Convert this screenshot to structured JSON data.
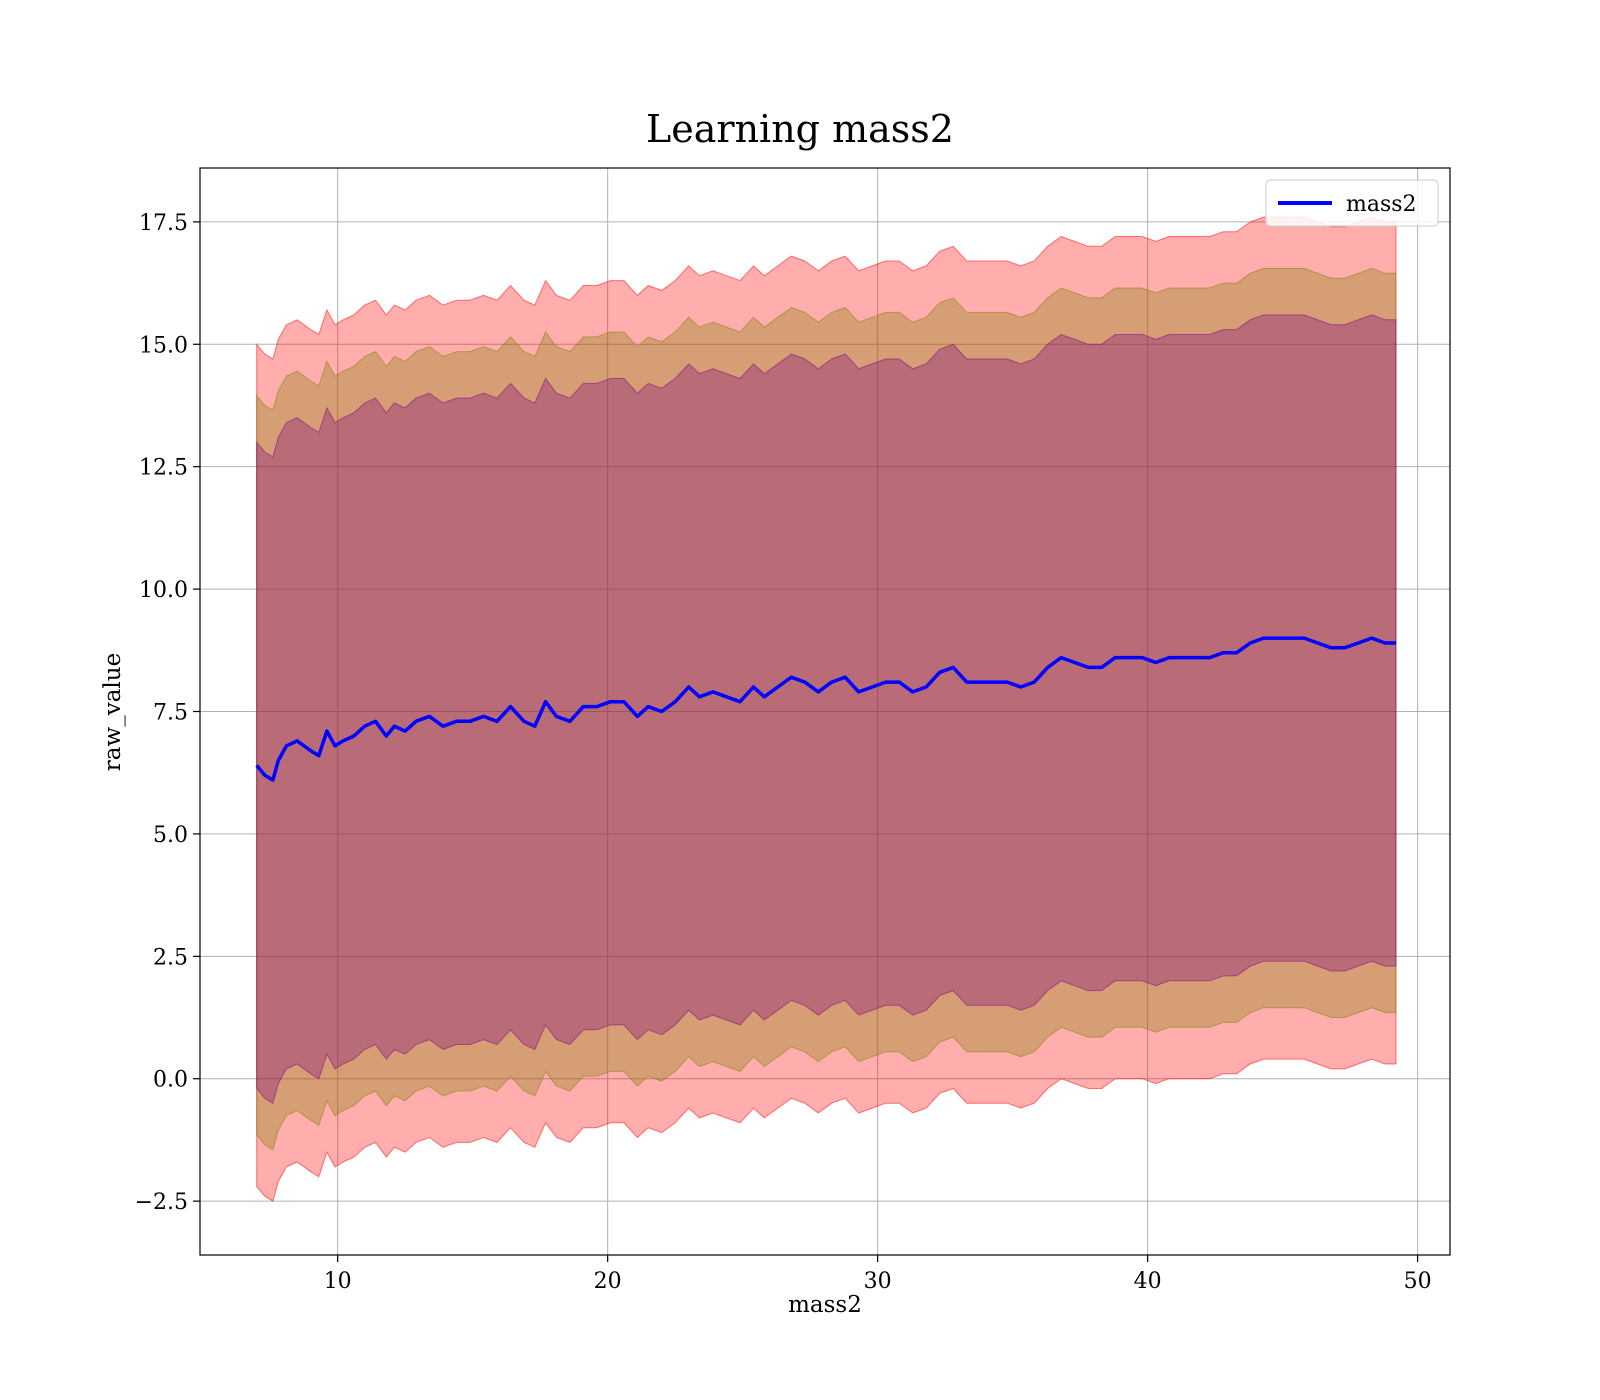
{
  "chart_data": {
    "type": "line",
    "title": "Learning mass2",
    "xlabel": "mass2",
    "ylabel": "raw_value",
    "xlim": [
      4.9,
      51.2
    ],
    "ylim": [
      -3.6,
      18.6
    ],
    "xticks": [
      10,
      20,
      30,
      40,
      50
    ],
    "xtick_labels": [
      "10",
      "20",
      "30",
      "40",
      "50"
    ],
    "yticks": [
      -2.5,
      0.0,
      2.5,
      5.0,
      7.5,
      10.0,
      12.5,
      15.0,
      17.5
    ],
    "ytick_labels": [
      "−2.5",
      "0.0",
      "2.5",
      "5.0",
      "7.5",
      "10.0",
      "12.5",
      "15.0",
      "17.5"
    ],
    "grid": true,
    "legend": {
      "position": "top-right",
      "entries": [
        "mass2"
      ]
    },
    "series": [
      {
        "name": "mass2",
        "color": "#0000ff",
        "x": [
          7.0,
          7.3,
          7.6,
          7.8,
          8.1,
          8.5,
          9.0,
          9.3,
          9.6,
          9.9,
          10.2,
          10.6,
          11.0,
          11.4,
          11.8,
          12.1,
          12.5,
          12.9,
          13.4,
          13.9,
          14.4,
          14.9,
          15.4,
          15.9,
          16.4,
          16.9,
          17.3,
          17.7,
          18.1,
          18.6,
          19.1,
          19.6,
          20.1,
          20.6,
          21.1,
          21.5,
          22.0,
          22.5,
          23.0,
          23.4,
          23.9,
          24.4,
          24.9,
          25.4,
          25.8,
          26.3,
          26.8,
          27.3,
          27.8,
          28.3,
          28.8,
          29.3,
          29.8,
          30.3,
          30.8,
          31.3,
          31.8,
          32.3,
          32.8,
          33.3,
          33.8,
          34.3,
          34.8,
          35.3,
          35.8,
          36.3,
          36.8,
          37.3,
          37.8,
          38.3,
          38.8,
          39.3,
          39.8,
          40.3,
          40.8,
          41.3,
          41.8,
          42.3,
          42.8,
          43.3,
          43.8,
          44.3,
          44.8,
          45.3,
          45.8,
          46.3,
          46.8,
          47.3,
          47.8,
          48.3,
          48.8,
          49.2
        ],
        "y": [
          6.4,
          6.2,
          6.1,
          6.5,
          6.8,
          6.9,
          6.7,
          6.6,
          7.1,
          6.8,
          6.9,
          7.0,
          7.2,
          7.3,
          7.0,
          7.2,
          7.1,
          7.3,
          7.4,
          7.2,
          7.3,
          7.3,
          7.4,
          7.3,
          7.6,
          7.3,
          7.2,
          7.7,
          7.4,
          7.3,
          7.6,
          7.6,
          7.7,
          7.7,
          7.4,
          7.6,
          7.5,
          7.7,
          8.0,
          7.8,
          7.9,
          7.8,
          7.7,
          8.0,
          7.8,
          8.0,
          8.2,
          8.1,
          7.9,
          8.1,
          8.2,
          7.9,
          8.0,
          8.1,
          8.1,
          7.9,
          8.0,
          8.3,
          8.4,
          8.1,
          8.1,
          8.1,
          8.1,
          8.0,
          8.1,
          8.4,
          8.6,
          8.5,
          8.4,
          8.4,
          8.6,
          8.6,
          8.6,
          8.5,
          8.6,
          8.6,
          8.6,
          8.6,
          8.7,
          8.7,
          8.9,
          9.0,
          9.0,
          9.0,
          9.0,
          8.9,
          8.8,
          8.8,
          8.9,
          9.0,
          8.9,
          8.9
        ]
      }
    ],
    "bands": [
      {
        "color": "#ff0000",
        "opacity": 0.32,
        "lower_offset": -8.6,
        "upper_offset": 8.6
      },
      {
        "color": "#808000",
        "opacity": 0.32,
        "lower_offset": -7.55,
        "upper_offset": 7.55
      },
      {
        "color": "#800080",
        "opacity": 0.32,
        "lower_offset": -6.6,
        "upper_offset": 6.6
      }
    ]
  }
}
